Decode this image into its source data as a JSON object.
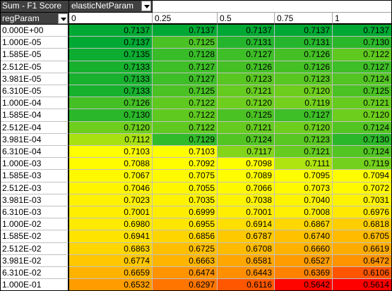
{
  "pivot": {
    "data_field_label": "Sum - F1 Score",
    "column_field_label": "elasticNetParam",
    "row_field_label": "regParam",
    "columns": [
      "0",
      "0.25",
      "0.5",
      "0.75",
      "1"
    ],
    "rows": [
      {
        "label": "0.000E+00",
        "values": [
          "0.7137",
          "0.7137",
          "0.7137",
          "0.7137",
          "0.7137"
        ]
      },
      {
        "label": "1.000E-05",
        "values": [
          "0.7137",
          "0.7125",
          "0.7131",
          "0.7131",
          "0.7130"
        ]
      },
      {
        "label": "1.585E-05",
        "values": [
          "0.7135",
          "0.7128",
          "0.7127",
          "0.7126",
          "0.7122"
        ]
      },
      {
        "label": "2.512E-05",
        "values": [
          "0.7133",
          "0.7127",
          "0.7126",
          "0.7126",
          "0.7127"
        ]
      },
      {
        "label": "3.981E-05",
        "values": [
          "0.7133",
          "0.7127",
          "0.7123",
          "0.7123",
          "0.7124"
        ]
      },
      {
        "label": "6.310E-05",
        "values": [
          "0.7133",
          "0.7125",
          "0.7121",
          "0.7120",
          "0.7125"
        ]
      },
      {
        "label": "1.000E-04",
        "values": [
          "0.7126",
          "0.7122",
          "0.7120",
          "0.7119",
          "0.7121"
        ]
      },
      {
        "label": "1.585E-04",
        "values": [
          "0.7130",
          "0.7122",
          "0.7125",
          "0.7127",
          "0.7120"
        ]
      },
      {
        "label": "2.512E-04",
        "values": [
          "0.7120",
          "0.7122",
          "0.7121",
          "0.7120",
          "0.7124"
        ]
      },
      {
        "label": "3.981E-04",
        "values": [
          "0.7112",
          "0.7129",
          "0.7124",
          "0.7123",
          "0.7130"
        ]
      },
      {
        "label": "6.310E-04",
        "values": [
          "0.7103",
          "0.7103",
          "0.7117",
          "0.7121",
          "0.7124"
        ]
      },
      {
        "label": "1.000E-03",
        "values": [
          "0.7088",
          "0.7092",
          "0.7098",
          "0.7111",
          "0.7119"
        ]
      },
      {
        "label": "1.585E-03",
        "values": [
          "0.7067",
          "0.7075",
          "0.7089",
          "0.7095",
          "0.7094"
        ]
      },
      {
        "label": "2.512E-03",
        "values": [
          "0.7046",
          "0.7055",
          "0.7066",
          "0.7073",
          "0.7072"
        ]
      },
      {
        "label": "3.981E-03",
        "values": [
          "0.7023",
          "0.7035",
          "0.7038",
          "0.7040",
          "0.7031"
        ]
      },
      {
        "label": "6.310E-03",
        "values": [
          "0.7001",
          "0.6999",
          "0.7001",
          "0.7008",
          "0.6976"
        ]
      },
      {
        "label": "1.000E-02",
        "values": [
          "0.6980",
          "0.6955",
          "0.6914",
          "0.6867",
          "0.6818"
        ]
      },
      {
        "label": "1.585E-02",
        "values": [
          "0.6941",
          "0.6856",
          "0.6787",
          "0.6740",
          "0.6705"
        ]
      },
      {
        "label": "2.512E-02",
        "values": [
          "0.6863",
          "0.6725",
          "0.6708",
          "0.6660",
          "0.6619"
        ]
      },
      {
        "label": "3.981E-02",
        "values": [
          "0.6774",
          "0.6663",
          "0.6581",
          "0.6527",
          "0.6472"
        ]
      },
      {
        "label": "6.310E-02",
        "values": [
          "0.6659",
          "0.6474",
          "0.6443",
          "0.6369",
          "0.6106"
        ]
      },
      {
        "label": "1.000E-01",
        "values": [
          "0.6532",
          "0.6297",
          "0.6116",
          "0.5642",
          "0.5614"
        ]
      }
    ],
    "color_scale": {
      "low": "#ff0000",
      "mid": "#ffff00",
      "high": "#00a933",
      "mid_value": 0.7103
    }
  }
}
